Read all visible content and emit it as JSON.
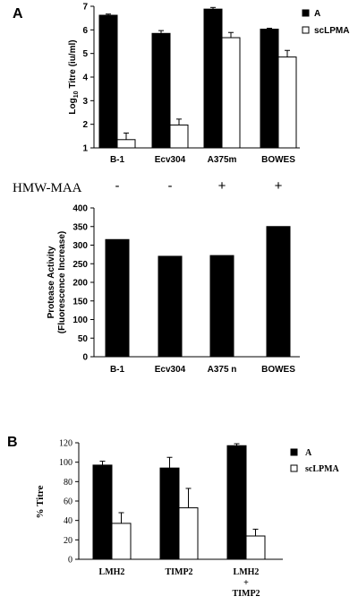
{
  "panel_a_label": "A",
  "panel_b_label": "B",
  "hmw_row": {
    "label": "HMW-MAA",
    "marks": [
      "-",
      "-",
      "+",
      "+"
    ]
  },
  "chart_data": [
    {
      "type": "bar",
      "id": "a_titre",
      "categories": [
        "B-1",
        "Ecv304",
        "A375m",
        "BOWES"
      ],
      "series": [
        {
          "name": "A",
          "values": [
            6.62,
            5.85,
            6.88,
            6.03
          ],
          "errors": [
            0.05,
            0.12,
            0.07,
            0.04
          ],
          "color": "#000000"
        },
        {
          "name": "scLPMA",
          "values": [
            1.35,
            1.97,
            5.67,
            4.85
          ],
          "errors": [
            0.28,
            0.25,
            0.22,
            0.28
          ],
          "color": "#ffffff"
        }
      ],
      "ylabel_prefix": "Log",
      "ylabel_sub": "10",
      "ylabel_suffix": " Titre (iu/ml)",
      "ylim": [
        1,
        7
      ],
      "yticks": [
        "1",
        "2",
        "3",
        "4",
        "5",
        "6",
        "7"
      ],
      "legend_position": "top-right"
    },
    {
      "type": "bar",
      "id": "a_protease",
      "categories": [
        "B-1",
        "Ecv304",
        "A375 n",
        "BOWES"
      ],
      "series": [
        {
          "values": [
            315,
            270,
            272,
            350
          ],
          "color": "#000000"
        }
      ],
      "ylabel_line1": "Protease Activity",
      "ylabel_line2": "(Fluorescence Increase)",
      "ylim": [
        0,
        400
      ],
      "yticks": [
        "0",
        "50",
        "100",
        "150",
        "200",
        "250",
        "300",
        "350",
        "400"
      ]
    },
    {
      "type": "bar",
      "id": "b_titre",
      "categories": [
        "LMH2",
        "TIMP2",
        "LMH2\n+\nTIMP2"
      ],
      "series": [
        {
          "name": "A",
          "values": [
            97,
            94,
            117
          ],
          "errors": [
            4,
            11,
            2
          ],
          "color": "#000000"
        },
        {
          "name": "scLPMA",
          "values": [
            37,
            53,
            24
          ],
          "errors": [
            11,
            20,
            7
          ],
          "color": "#ffffff"
        }
      ],
      "ylabel": "% Titre",
      "ylim": [
        0,
        120
      ],
      "yticks": [
        "0",
        "20",
        "40",
        "60",
        "80",
        "100",
        "120"
      ],
      "legend_position": "top-right"
    }
  ]
}
